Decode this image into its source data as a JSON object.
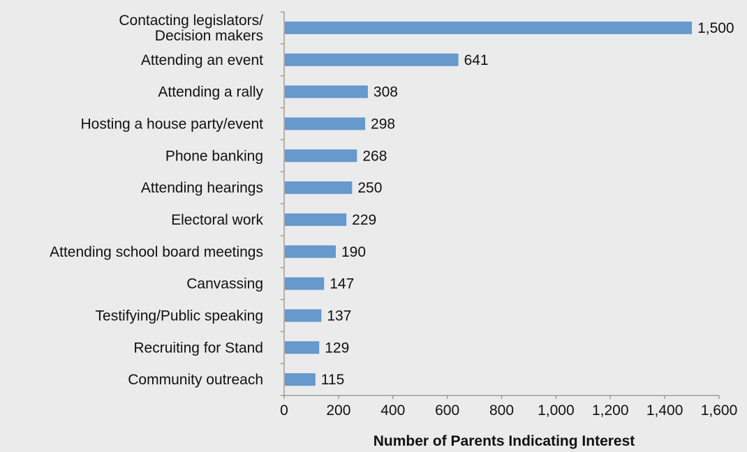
{
  "chart_data": {
    "type": "bar",
    "orientation": "horizontal",
    "categories": [
      [
        "Contacting legislators/",
        "Decision makers"
      ],
      [
        "Attending an event"
      ],
      [
        "Attending a rally"
      ],
      [
        "Hosting a house party/event"
      ],
      [
        "Phone banking"
      ],
      [
        "Attending hearings"
      ],
      [
        "Electoral work"
      ],
      [
        "Attending school board meetings"
      ],
      [
        "Canvassing"
      ],
      [
        "Testifying/Public speaking"
      ],
      [
        "Recruiting for Stand"
      ],
      [
        "Community outreach"
      ]
    ],
    "values": [
      1500,
      641,
      308,
      298,
      268,
      250,
      229,
      190,
      147,
      137,
      129,
      115
    ],
    "value_labels": [
      "1,500",
      "641",
      "308",
      "298",
      "268",
      "250",
      "229",
      "190",
      "147",
      "137",
      "129",
      "115"
    ],
    "xlabel": "Number of Parents Indicating Interest",
    "ylabel": "",
    "xlim": [
      0,
      1600
    ],
    "xticks": [
      0,
      200,
      400,
      600,
      800,
      1000,
      1200,
      1400,
      1600
    ],
    "xtick_labels": [
      "0",
      "200",
      "400",
      "600",
      "800",
      "1,000",
      "1,200",
      "1,400",
      "1,600"
    ],
    "grid": false,
    "legend": "none",
    "bar_color": "#6699cc",
    "background_color": "#ebebec"
  }
}
